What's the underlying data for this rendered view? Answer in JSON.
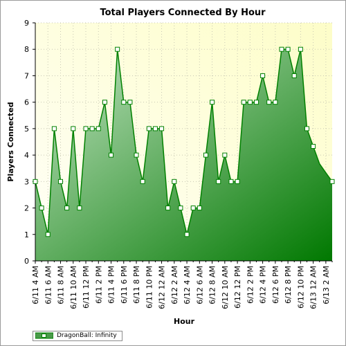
{
  "chart_data": {
    "type": "area",
    "title": "Total Players Connected By Hour",
    "xlabel": "Hour",
    "ylabel": "Players Connected",
    "ylim": [
      0,
      9
    ],
    "yticks": [
      "0",
      "1",
      "2",
      "3",
      "4",
      "5",
      "6",
      "7",
      "8",
      "9"
    ],
    "x": [
      "6/11 4 AM",
      "6/11 5 AM",
      "6/11 6 AM",
      "6/11 7 AM",
      "6/11 8 AM",
      "6/11 9 AM",
      "6/11 10 AM",
      "6/11 11 AM",
      "6/11 12 PM",
      "6/11 1 PM",
      "6/11 2 PM",
      "6/11 3 PM",
      "6/11 4 PM",
      "6/11 5 PM",
      "6/11 6 PM",
      "6/11 7 PM",
      "6/11 8 PM",
      "6/11 9 PM",
      "6/11 10 PM",
      "6/11 11 PM",
      "6/12 12 AM",
      "6/12 1 AM",
      "6/12 2 AM",
      "6/12 3 AM",
      "6/12 4 AM",
      "6/12 5 AM",
      "6/12 6 AM",
      "6/12 7 AM",
      "6/12 8 AM",
      "6/12 9 AM",
      "6/12 10 AM",
      "6/12 11 AM",
      "6/12 12 PM",
      "6/12 1 PM",
      "6/12 2 PM",
      "6/12 3 PM",
      "6/12 4 PM",
      "6/12 5 PM",
      "6/12 6 PM",
      "6/12 7 PM",
      "6/12 8 PM",
      "6/12 9 PM",
      "6/12 10 PM",
      "6/12 11 PM",
      "6/13 12 AM",
      "6/13 1 AM",
      "6/13 2 AM",
      "6/13 3 AM"
    ],
    "xtick_labels": [
      "6/11 4 AM",
      "6/11 6 AM",
      "6/11 8 AM",
      "6/11 10 AM",
      "6/11 12 PM",
      "6/11 2 PM",
      "6/11 4 PM",
      "6/11 6 PM",
      "6/11 8 PM",
      "6/11 10 PM",
      "6/12 12 AM",
      "6/12 2 AM",
      "6/12 4 AM",
      "6/12 6 AM",
      "6/12 8 AM",
      "6/12 10 AM",
      "6/12 12 PM",
      "6/12 2 PM",
      "6/12 4 PM",
      "6/12 6 PM",
      "6/12 8 PM",
      "6/12 10 PM",
      "6/13 12 AM",
      "6/13 2 AM"
    ],
    "series": [
      {
        "name": "DragonBall: Infinity",
        "marked": [
          true,
          true,
          true,
          true,
          true,
          true,
          true,
          true,
          true,
          true,
          true,
          true,
          true,
          true,
          true,
          true,
          true,
          true,
          true,
          true,
          true,
          true,
          true,
          true,
          true,
          true,
          true,
          true,
          true,
          true,
          true,
          true,
          true,
          true,
          true,
          true,
          true,
          true,
          true,
          true,
          true,
          true,
          true,
          true,
          true,
          false,
          false,
          true
        ],
        "values": [
          3,
          2,
          1,
          5,
          3,
          2,
          5,
          2,
          5,
          5,
          5,
          6,
          4,
          8,
          6,
          6,
          4,
          3,
          5,
          5,
          5,
          2,
          3,
          2,
          1,
          2,
          2,
          4,
          6,
          3,
          4,
          3,
          3,
          6,
          6,
          6,
          7,
          6,
          6,
          8,
          8,
          7,
          8,
          5,
          4.33,
          3.67,
          3.33,
          3
        ]
      }
    ],
    "grid": true,
    "legend_position": "bottom-left",
    "colors": {
      "line": "#008000",
      "fill_light": "#c4e4c4",
      "fill_dark": "#007800",
      "plot_bg_light": "#fffff8",
      "plot_bg_dark": "#fdfdc8",
      "grid": "#c8c8b4",
      "axis": "#000000"
    }
  }
}
